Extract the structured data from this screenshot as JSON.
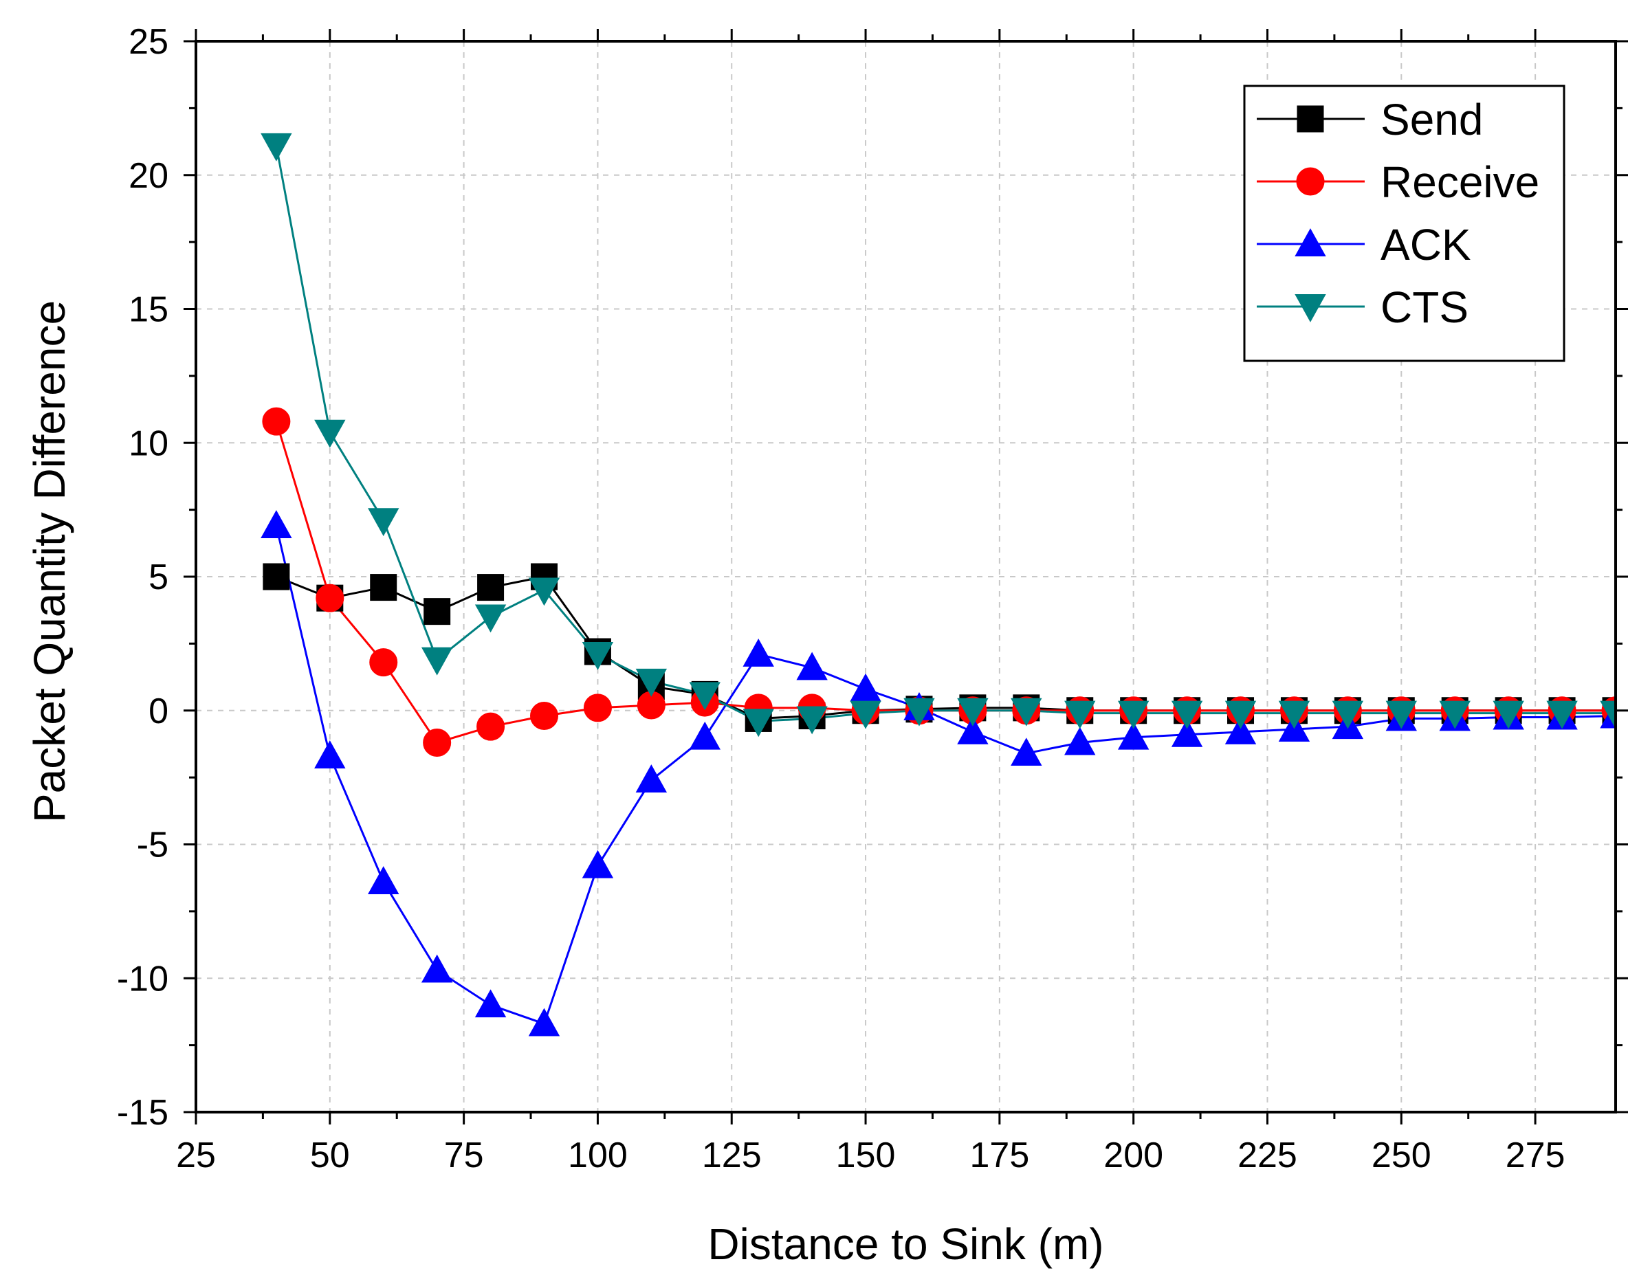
{
  "chart_data": {
    "type": "line",
    "title": "",
    "xlabel": "Distance to Sink (m)",
    "ylabel": "Packet Quantity Difference",
    "xlim": [
      25,
      290
    ],
    "ylim": [
      -15,
      25
    ],
    "xticks": [
      25,
      50,
      75,
      100,
      125,
      150,
      175,
      200,
      225,
      250,
      275
    ],
    "yticks": [
      -15,
      -10,
      -5,
      0,
      5,
      10,
      15,
      20,
      25
    ],
    "grid": true,
    "legend_position": "top-right",
    "x": [
      40,
      50,
      60,
      70,
      80,
      90,
      100,
      110,
      120,
      130,
      140,
      150,
      160,
      170,
      180,
      190,
      200,
      210,
      220,
      230,
      240,
      250,
      260,
      270,
      280,
      290
    ],
    "series": [
      {
        "name": "Send",
        "color": "#000000",
        "marker": "square",
        "values": [
          5.0,
          4.2,
          4.6,
          3.7,
          4.6,
          5.0,
          2.2,
          0.9,
          0.6,
          -0.3,
          -0.2,
          0.0,
          0.05,
          0.1,
          0.1,
          0.0,
          0.0,
          0.0,
          0.0,
          0.0,
          0.0,
          0.0,
          0.0,
          0.0,
          0.0,
          0.0
        ]
      },
      {
        "name": "Receive",
        "color": "#ff0000",
        "marker": "circle",
        "values": [
          10.8,
          4.2,
          1.8,
          -1.2,
          -0.6,
          -0.2,
          0.1,
          0.2,
          0.3,
          0.1,
          0.1,
          0.0,
          0.0,
          0.0,
          0.0,
          0.0,
          0.0,
          0.0,
          0.0,
          0.0,
          0.0,
          0.0,
          0.0,
          0.0,
          0.0,
          0.0
        ]
      },
      {
        "name": "ACK",
        "color": "#0000ff",
        "marker": "triangle-up",
        "values": [
          6.9,
          -1.7,
          -6.4,
          -9.7,
          -11.0,
          -11.7,
          -5.8,
          -2.6,
          -1.0,
          2.1,
          1.6,
          0.8,
          0.1,
          -0.8,
          -1.6,
          -1.2,
          -1.0,
          -0.9,
          -0.8,
          -0.7,
          -0.6,
          -0.3,
          -0.3,
          -0.25,
          -0.25,
          -0.2
        ]
      },
      {
        "name": "CTS",
        "color": "#008080",
        "marker": "triangle-down",
        "values": [
          21.1,
          10.4,
          7.1,
          1.9,
          3.5,
          4.5,
          2.1,
          1.1,
          0.6,
          -0.4,
          -0.3,
          -0.1,
          0.0,
          0.0,
          0.0,
          -0.1,
          -0.1,
          -0.1,
          -0.1,
          -0.1,
          -0.1,
          -0.1,
          -0.1,
          -0.1,
          -0.1,
          -0.1
        ]
      }
    ]
  }
}
